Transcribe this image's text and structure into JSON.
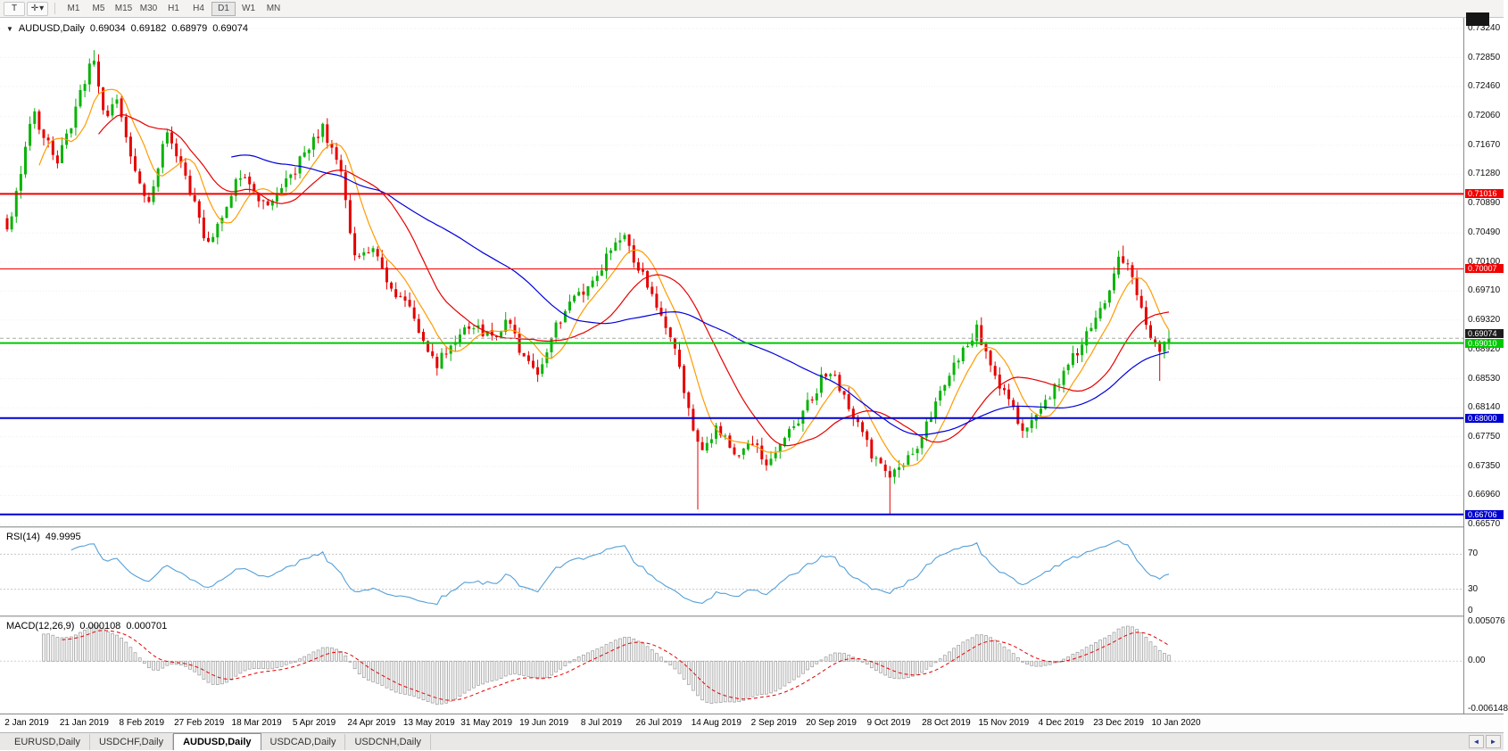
{
  "toolbar": {
    "text_tool_glyph": "T",
    "draw_tool_glyph": "✛",
    "caret_glyph": "▾",
    "timeframes": [
      "M1",
      "M5",
      "M15",
      "M30",
      "H1",
      "H4",
      "D1",
      "W1",
      "MN"
    ],
    "active_timeframe": "D1"
  },
  "chart": {
    "dropdown_glyph": "▼",
    "title": "AUDUSD,Daily",
    "ohlc": {
      "open": "0.69034",
      "high": "0.69182",
      "low": "0.68979",
      "close": "0.69074"
    },
    "price_axis": {
      "top_value": 0.7324,
      "bottom_value": 0.6657,
      "labels": [
        "0.73240",
        "0.72850",
        "0.72460",
        "0.72060",
        "0.71670",
        "0.71280",
        "0.70890",
        "0.70490",
        "0.70100",
        "0.69710",
        "0.69320",
        "0.68920",
        "0.68530",
        "0.68140",
        "0.67750",
        "0.67350",
        "0.66960",
        "0.66570"
      ]
    },
    "colors": {
      "up": "#0ab30a",
      "down": "#e60000",
      "background": "#ffffff"
    },
    "moving_averages": [
      {
        "name": "fast-ma",
        "period": 8,
        "color": "#ff9c00"
      },
      {
        "name": "mid-ma",
        "period": 21,
        "color": "#e60000"
      },
      {
        "name": "slow-ma",
        "period": 50,
        "color": "#0000dc"
      }
    ],
    "hlines": [
      {
        "label": "0.71016",
        "price": 0.71016,
        "color": "#f00000",
        "width": 2
      },
      {
        "label": "0.70007",
        "price": 0.70007,
        "color": "#f00000",
        "width": 1
      },
      {
        "label": "0.69010",
        "price": 0.6901,
        "color": "#00c800",
        "width": 2
      },
      {
        "label": "0.68000",
        "price": 0.68,
        "color": "#0000d0",
        "width": 2
      },
      {
        "label": "0.66706",
        "price": 0.66706,
        "color": "#0000d0",
        "width": 2
      }
    ],
    "current_price": {
      "label": "0.69074",
      "value": 0.69074,
      "line_color": "#aaaaaa",
      "tag_color": "#1c1c1c"
    },
    "candles": {
      "count": 255,
      "anchors": [
        [
          0,
          0.705
        ],
        [
          0.002,
          0.706
        ],
        [
          0.022,
          0.7215
        ],
        [
          0.043,
          0.714
        ],
        [
          0.074,
          0.7285
        ],
        [
          0.086,
          0.7195
        ],
        [
          0.094,
          0.724
        ],
        [
          0.109,
          0.7135
        ],
        [
          0.123,
          0.7085
        ],
        [
          0.137,
          0.7185
        ],
        [
          0.159,
          0.71
        ],
        [
          0.172,
          0.7035
        ],
        [
          0.191,
          0.7095
        ],
        [
          0.203,
          0.7135
        ],
        [
          0.218,
          0.708
        ],
        [
          0.243,
          0.7125
        ],
        [
          0.272,
          0.719
        ],
        [
          0.286,
          0.714
        ],
        [
          0.299,
          0.7015
        ],
        [
          0.313,
          0.7028
        ],
        [
          0.326,
          0.6988
        ],
        [
          0.346,
          0.6948
        ],
        [
          0.369,
          0.6872
        ],
        [
          0.384,
          0.69
        ],
        [
          0.402,
          0.6928
        ],
        [
          0.418,
          0.6903
        ],
        [
          0.431,
          0.6932
        ],
        [
          0.444,
          0.6882
        ],
        [
          0.456,
          0.6852
        ],
        [
          0.473,
          0.6928
        ],
        [
          0.49,
          0.6962
        ],
        [
          0.506,
          0.699
        ],
        [
          0.529,
          0.7046
        ],
        [
          0.543,
          0.7005
        ],
        [
          0.558,
          0.6955
        ],
        [
          0.574,
          0.6895
        ],
        [
          0.587,
          0.6805
        ],
        [
          0.597,
          0.6757
        ],
        [
          0.611,
          0.6788
        ],
        [
          0.626,
          0.675
        ],
        [
          0.639,
          0.6775
        ],
        [
          0.653,
          0.6742
        ],
        [
          0.667,
          0.6768
        ],
        [
          0.682,
          0.68
        ],
        [
          0.694,
          0.6832
        ],
        [
          0.707,
          0.6868
        ],
        [
          0.719,
          0.6835
        ],
        [
          0.733,
          0.6788
        ],
        [
          0.747,
          0.6744
        ],
        [
          0.761,
          0.6718
        ],
        [
          0.773,
          0.6745
        ],
        [
          0.788,
          0.6772
        ],
        [
          0.802,
          0.6838
        ],
        [
          0.814,
          0.6872
        ],
        [
          0.824,
          0.6898
        ],
        [
          0.835,
          0.692
        ],
        [
          0.848,
          0.6868
        ],
        [
          0.862,
          0.6822
        ],
        [
          0.877,
          0.6778
        ],
        [
          0.889,
          0.6808
        ],
        [
          0.897,
          0.6832
        ],
        [
          0.91,
          0.6858
        ],
        [
          0.92,
          0.6888
        ],
        [
          0.934,
          0.6922
        ],
        [
          0.947,
          0.6962
        ],
        [
          0.959,
          0.7022
        ],
        [
          0.972,
          0.6975
        ],
        [
          0.982,
          0.6922
        ],
        [
          0.991,
          0.6882
        ],
        [
          1,
          0.6907
        ]
      ],
      "wick_events": [
        {
          "f": 0.074,
          "high": 0.7295
        },
        {
          "f": 0.596,
          "low": 0.6677
        },
        {
          "f": 0.761,
          "low": 0.667
        },
        {
          "f": 0.959,
          "high": 0.7032
        },
        {
          "f": 0.991,
          "low": 0.685
        }
      ]
    }
  },
  "rsi": {
    "name": "RSI(14)",
    "value": "49.9995",
    "color": "#55a0d8",
    "levels": [
      70,
      30
    ],
    "axis_labels": [
      "70",
      "30",
      "0"
    ]
  },
  "macd": {
    "name": "MACD(12,26,9)",
    "value": "0.000108",
    "signal_value": "0.000701",
    "hist_fill": "#f2f2f2",
    "hist_stroke": "#9a9a9a",
    "signal_color": "#e60000",
    "axis_labels": [
      "0.005076",
      "0.00",
      "-0.006148"
    ]
  },
  "time_axis": {
    "labels": [
      "2 Jan 2019",
      "21 Jan 2019",
      "8 Feb 2019",
      "27 Feb 2019",
      "18 Mar 2019",
      "5 Apr 2019",
      "24 Apr 2019",
      "13 May 2019",
      "31 May 2019",
      "19 Jun 2019",
      "8 Jul 2019",
      "26 Jul 2019",
      "14 Aug 2019",
      "2 Sep 2019",
      "20 Sep 2019",
      "9 Oct 2019",
      "28 Oct 2019",
      "15 Nov 2019",
      "4 Dec 2019",
      "23 Dec 2019",
      "10 Jan 2020"
    ]
  },
  "tabs": {
    "items": [
      "EURUSD,Daily",
      "USDCHF,Daily",
      "AUDUSD,Daily",
      "USDCAD,Daily",
      "USDCNH,Daily"
    ],
    "active": "AUDUSD,Daily",
    "scroll_left_glyph": "◄",
    "scroll_right_glyph": "►"
  }
}
